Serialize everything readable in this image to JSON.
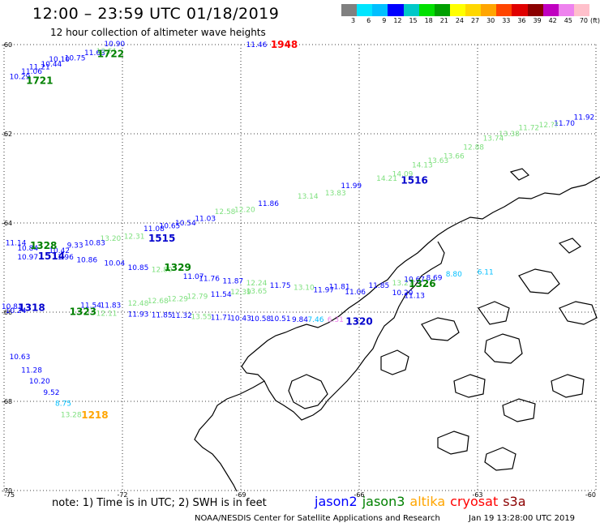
{
  "title": "12:00 – 23:59 UTC 01/18/2019",
  "subtitle": "12 hour collection of altimeter wave heights",
  "legend": {
    "colors": [
      "#808080",
      "#00e5ff",
      "#00bfff",
      "#0000ff",
      "#00c8c8",
      "#00e000",
      "#00a000",
      "#ffff00",
      "#ffd700",
      "#ffa500",
      "#ff4500",
      "#e00000",
      "#8b0000",
      "#c000c0",
      "#ee82ee",
      "#ffc0cb",
      "#000000"
    ],
    "labels": [
      "3",
      "6",
      "9",
      "12",
      "15",
      "18",
      "21",
      "24",
      "27",
      "30",
      "33",
      "36",
      "39",
      "42",
      "45",
      "70"
    ],
    "unit": "(ft)"
  },
  "map": {
    "lat_labels": [
      "-60",
      "-62",
      "-64",
      "-66",
      "-68",
      "-70"
    ],
    "lon_labels": [
      "-75",
      "-72",
      "-69",
      "-66",
      "-63",
      "-60"
    ]
  },
  "observations": [
    {
      "text": "10.90",
      "lon": -72.2,
      "lat": -60.04,
      "color": "#0000ff"
    },
    {
      "text": "11.63",
      "lon": -72.7,
      "lat": -60.24,
      "color": "#0000ff"
    },
    {
      "text": "10.75",
      "lon": -73.2,
      "lat": -60.35,
      "color": "#0000ff"
    },
    {
      "text": "10.10",
      "lon": -73.6,
      "lat": -60.38,
      "color": "#0000ff"
    },
    {
      "text": "10.44",
      "lon": -73.8,
      "lat": -60.49,
      "color": "#0000ff"
    },
    {
      "text": "11.21",
      "lon": -74.1,
      "lat": -60.55,
      "color": "#0000ff"
    },
    {
      "text": "11.06",
      "lon": -74.3,
      "lat": -60.65,
      "color": "#0000ff"
    },
    {
      "text": "10.29",
      "lon": -74.6,
      "lat": -60.77,
      "color": "#0000ff"
    },
    {
      "text": "13.51",
      "lon": -72.4,
      "lat": -60.2,
      "color": "#7fe07f"
    },
    {
      "text": "11.46",
      "lon": -68.6,
      "lat": -60.05,
      "color": "#0000ff"
    },
    {
      "text": "11.92",
      "lon": -60.3,
      "lat": -61.68,
      "color": "#0000ff"
    },
    {
      "text": "11.70",
      "lon": -60.8,
      "lat": -61.82,
      "color": "#0000ff"
    },
    {
      "text": "12.??",
      "lon": -61.2,
      "lat": -61.85,
      "color": "#7fe07f"
    },
    {
      "text": "11.72",
      "lon": -61.7,
      "lat": -61.92,
      "color": "#7fe07f"
    },
    {
      "text": "13.38",
      "lon": -62.2,
      "lat": -62.05,
      "color": "#7fe07f"
    },
    {
      "text": "13.74",
      "lon": -62.6,
      "lat": -62.15,
      "color": "#7fe07f"
    },
    {
      "text": "12.88",
      "lon": -63.1,
      "lat": -62.35,
      "color": "#7fe07f"
    },
    {
      "text": "13.66",
      "lon": -63.6,
      "lat": -62.55,
      "color": "#7fe07f"
    },
    {
      "text": "13.63",
      "lon": -64.0,
      "lat": -62.65,
      "color": "#7fe07f"
    },
    {
      "text": "14.13",
      "lon": -64.4,
      "lat": -62.75,
      "color": "#7fe07f"
    },
    {
      "text": "14.09",
      "lon": -64.9,
      "lat": -62.95,
      "color": "#7fe07f"
    },
    {
      "text": "14.21",
      "lon": -65.3,
      "lat": -63.05,
      "color": "#7fe07f"
    },
    {
      "text": "11.99",
      "lon": -66.2,
      "lat": -63.22,
      "color": "#0000ff"
    },
    {
      "text": "13.83",
      "lon": -66.6,
      "lat": -63.38,
      "color": "#7fe07f"
    },
    {
      "text": "13.14",
      "lon": -67.3,
      "lat": -63.45,
      "color": "#7fe07f"
    },
    {
      "text": "11.86",
      "lon": -68.3,
      "lat": -63.62,
      "color": "#0000ff"
    },
    {
      "text": "12.20",
      "lon": -68.9,
      "lat": -63.75,
      "color": "#7fe07f"
    },
    {
      "text": "12.58",
      "lon": -69.4,
      "lat": -63.8,
      "color": "#7fe07f"
    },
    {
      "text": "11.03",
      "lon": -69.9,
      "lat": -63.95,
      "color": "#0000ff"
    },
    {
      "text": "10.54",
      "lon": -70.4,
      "lat": -64.05,
      "color": "#0000ff"
    },
    {
      "text": "10.65",
      "lon": -70.8,
      "lat": -64.12,
      "color": "#0000ff"
    },
    {
      "text": "11.08",
      "lon": -71.2,
      "lat": -64.18,
      "color": "#0000ff"
    },
    {
      "text": "12.31",
      "lon": -71.7,
      "lat": -64.35,
      "color": "#7fe07f"
    },
    {
      "text": "13.20",
      "lon": -72.3,
      "lat": -64.4,
      "color": "#7fe07f"
    },
    {
      "text": "10.83",
      "lon": -72.7,
      "lat": -64.5,
      "color": "#0000ff"
    },
    {
      "text": "9.33",
      "lon": -73.2,
      "lat": -64.55,
      "color": "#0000ff"
    },
    {
      "text": "11.14",
      "lon": -74.7,
      "lat": -64.5,
      "color": "#0000ff"
    },
    {
      "text": "10.42",
      "lon": -73.6,
      "lat": -64.67,
      "color": "#0000ff"
    },
    {
      "text": "10.84",
      "lon": -74.4,
      "lat": -64.62,
      "color": "#0000ff"
    },
    {
      "text": "10.97",
      "lon": -74.4,
      "lat": -64.82,
      "color": "#0000ff"
    },
    {
      "text": "11.96",
      "lon": -73.5,
      "lat": -64.82,
      "color": "#0000ff"
    },
    {
      "text": "10.86",
      "lon": -72.9,
      "lat": -64.88,
      "color": "#0000ff"
    },
    {
      "text": "10.04",
      "lon": -72.2,
      "lat": -64.95,
      "color": "#0000ff"
    },
    {
      "text": "10.85",
      "lon": -71.6,
      "lat": -65.05,
      "color": "#0000ff"
    },
    {
      "text": "12.80",
      "lon": -71.0,
      "lat": -65.1,
      "color": "#7fe07f"
    },
    {
      "text": "11.07",
      "lon": -70.2,
      "lat": -65.25,
      "color": "#0000ff"
    },
    {
      "text": "11.76",
      "lon": -69.8,
      "lat": -65.3,
      "color": "#0000ff"
    },
    {
      "text": "11.87",
      "lon": -69.2,
      "lat": -65.35,
      "color": "#0000ff"
    },
    {
      "text": "12.24",
      "lon": -68.6,
      "lat": -65.4,
      "color": "#7fe07f"
    },
    {
      "text": "11.75",
      "lon": -68.0,
      "lat": -65.45,
      "color": "#0000ff"
    },
    {
      "text": "13.10",
      "lon": -67.4,
      "lat": -65.5,
      "color": "#7fe07f"
    },
    {
      "text": "11.97",
      "lon": -66.9,
      "lat": -65.55,
      "color": "#0000ff"
    },
    {
      "text": "11.81",
      "lon": -66.5,
      "lat": -65.48,
      "color": "#0000ff"
    },
    {
      "text": "11.06",
      "lon": -66.1,
      "lat": -65.6,
      "color": "#0000ff"
    },
    {
      "text": "11.85",
      "lon": -65.5,
      "lat": -65.45,
      "color": "#0000ff"
    },
    {
      "text": "13.27",
      "lon": -64.9,
      "lat": -65.4,
      "color": "#7fe07f"
    },
    {
      "text": "10.67",
      "lon": -64.6,
      "lat": -65.32,
      "color": "#0000ff"
    },
    {
      "text": "8.69",
      "lon": -64.1,
      "lat": -65.28,
      "color": "#0000ff"
    },
    {
      "text": "8.80",
      "lon": -63.6,
      "lat": -65.2,
      "color": "#00bfff"
    },
    {
      "text": "6.11",
      "lon": -62.8,
      "lat": -65.15,
      "color": "#00bfff"
    },
    {
      "text": "10.20",
      "lon": -64.9,
      "lat": -65.62,
      "color": "#0000ff"
    },
    {
      "text": "11.13",
      "lon": -64.6,
      "lat": -65.68,
      "color": "#0000ff"
    },
    {
      "text": "11.54",
      "lon": -69.5,
      "lat": -65.65,
      "color": "#0000ff"
    },
    {
      "text": "12.39",
      "lon": -69.0,
      "lat": -65.6,
      "color": "#7fe07f"
    },
    {
      "text": "13.65",
      "lon": -68.6,
      "lat": -65.58,
      "color": "#7fe07f"
    },
    {
      "text": "12.79",
      "lon": -70.1,
      "lat": -65.7,
      "color": "#7fe07f"
    },
    {
      "text": "12.29",
      "lon": -70.6,
      "lat": -65.75,
      "color": "#7fe07f"
    },
    {
      "text": "12.68",
      "lon": -71.1,
      "lat": -65.8,
      "color": "#7fe07f"
    },
    {
      "text": "12.48",
      "lon": -71.6,
      "lat": -65.85,
      "color": "#7fe07f"
    },
    {
      "text": "11.83",
      "lon": -72.3,
      "lat": -65.9,
      "color": "#0000ff"
    },
    {
      "text": "11.54",
      "lon": -72.8,
      "lat": -65.9,
      "color": "#0000ff"
    },
    {
      "text": "10.81",
      "lon": -74.8,
      "lat": -65.93,
      "color": "#0000ff"
    },
    {
      "text": "10.24",
      "lon": -74.7,
      "lat": -66.02,
      "color": "#0000ff"
    },
    {
      "text": "12.11",
      "lon": -72.4,
      "lat": -66.08,
      "color": "#7fe07f"
    },
    {
      "text": "11.93",
      "lon": -71.6,
      "lat": -66.1,
      "color": "#0000ff"
    },
    {
      "text": "11.85",
      "lon": -71.0,
      "lat": -66.12,
      "color": "#0000ff"
    },
    {
      "text": "11.32",
      "lon": -70.5,
      "lat": -66.13,
      "color": "#0000ff"
    },
    {
      "text": "13.55",
      "lon": -70.0,
      "lat": -66.15,
      "color": "#7fe07f"
    },
    {
      "text": "11.71",
      "lon": -69.5,
      "lat": -66.17,
      "color": "#0000ff"
    },
    {
      "text": "10.43",
      "lon": -69.0,
      "lat": -66.19,
      "color": "#0000ff"
    },
    {
      "text": "10.58",
      "lon": -68.5,
      "lat": -66.2,
      "color": "#0000ff"
    },
    {
      "text": "10.51",
      "lon": -68.0,
      "lat": -66.2,
      "color": "#0000ff"
    },
    {
      "text": "9.84",
      "lon": -67.5,
      "lat": -66.22,
      "color": "#0000ff"
    },
    {
      "text": "7.46",
      "lon": -67.1,
      "lat": -66.22,
      "color": "#00bfff"
    },
    {
      "text": "6.31",
      "lon": -66.6,
      "lat": -66.22,
      "color": "#ee82ee"
    },
    {
      "text": "10.63",
      "lon": -74.6,
      "lat": -67.05,
      "color": "#0000ff"
    },
    {
      "text": "11.28",
      "lon": -74.3,
      "lat": -67.35,
      "color": "#0000ff"
    },
    {
      "text": "10.20",
      "lon": -74.1,
      "lat": -67.6,
      "color": "#0000ff"
    },
    {
      "text": "9.52",
      "lon": -73.8,
      "lat": -67.85,
      "color": "#0000ff"
    },
    {
      "text": "8.75",
      "lon": -73.5,
      "lat": -68.1,
      "color": "#00bfff"
    },
    {
      "text": "13.28",
      "lon": -73.3,
      "lat": -68.35,
      "color": "#7fe07f"
    }
  ],
  "time_marks": [
    {
      "text": "1722",
      "lon": -72.3,
      "lat": -60.28,
      "color": "#008000"
    },
    {
      "text": "1721",
      "lon": -74.1,
      "lat": -60.88,
      "color": "#008000"
    },
    {
      "text": "1948",
      "lon": -67.9,
      "lat": -60.07,
      "color": "#ff0000"
    },
    {
      "text": "1516",
      "lon": -64.6,
      "lat": -63.12,
      "color": "#0000cc"
    },
    {
      "text": "1515",
      "lon": -71.0,
      "lat": -64.42,
      "color": "#0000cc"
    },
    {
      "text": "1328",
      "lon": -74.0,
      "lat": -64.58,
      "color": "#008000"
    },
    {
      "text": "1514",
      "lon": -73.8,
      "lat": -64.82,
      "color": "#0000cc"
    },
    {
      "text": "1329",
      "lon": -70.6,
      "lat": -65.07,
      "color": "#008000"
    },
    {
      "text": "1326",
      "lon": -64.4,
      "lat": -65.44,
      "color": "#008000"
    },
    {
      "text": "1318",
      "lon": -74.3,
      "lat": -65.97,
      "color": "#0000cc"
    },
    {
      "text": "1323",
      "lon": -73.0,
      "lat": -66.06,
      "color": "#008000"
    },
    {
      "text": "1320",
      "lon": -66.0,
      "lat": -66.28,
      "color": "#0000cc"
    },
    {
      "text": "1218",
      "lon": -72.7,
      "lat": -68.38,
      "color": "#ffa500"
    }
  ],
  "note": "note:  1) Time is in UTC;  2) SWH is in feet",
  "satellites": [
    {
      "name": "jason2",
      "color": "#0000ff"
    },
    {
      "name": "jason3",
      "color": "#008000"
    },
    {
      "name": "altika",
      "color": "#ffa500"
    },
    {
      "name": "cryosat",
      "color": "#ff0000"
    },
    {
      "name": "s3a",
      "color": "#8b0000"
    }
  ],
  "footer_left": "NOAA/NESDIS Center for Satellite Applications and Research",
  "footer_right": "Jan 19 13:28:00 UTC 2019"
}
